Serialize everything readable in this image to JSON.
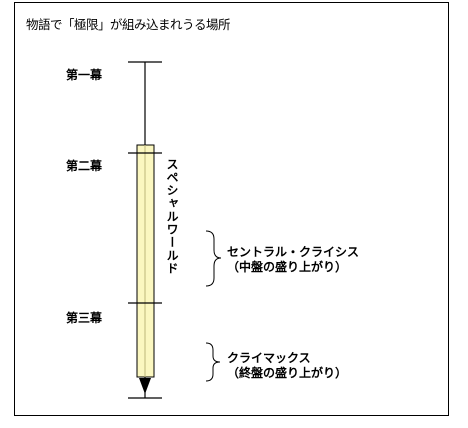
{
  "title": "物語で「極限」が組み込まれうる場所",
  "acts": [
    "第一幕",
    "第二幕",
    "第三幕"
  ],
  "vertical_label": "スペシャルワールド",
  "central_crisis": {
    "line1": "セントラル・クライシス",
    "line2": "（中盤の盛り上がり）"
  },
  "climax": {
    "line1": "クライマックス",
    "line2": "（終盤の盛り上がり）"
  },
  "colors": {
    "special_world_fill": "#fbf7c0",
    "line": "#000000"
  }
}
